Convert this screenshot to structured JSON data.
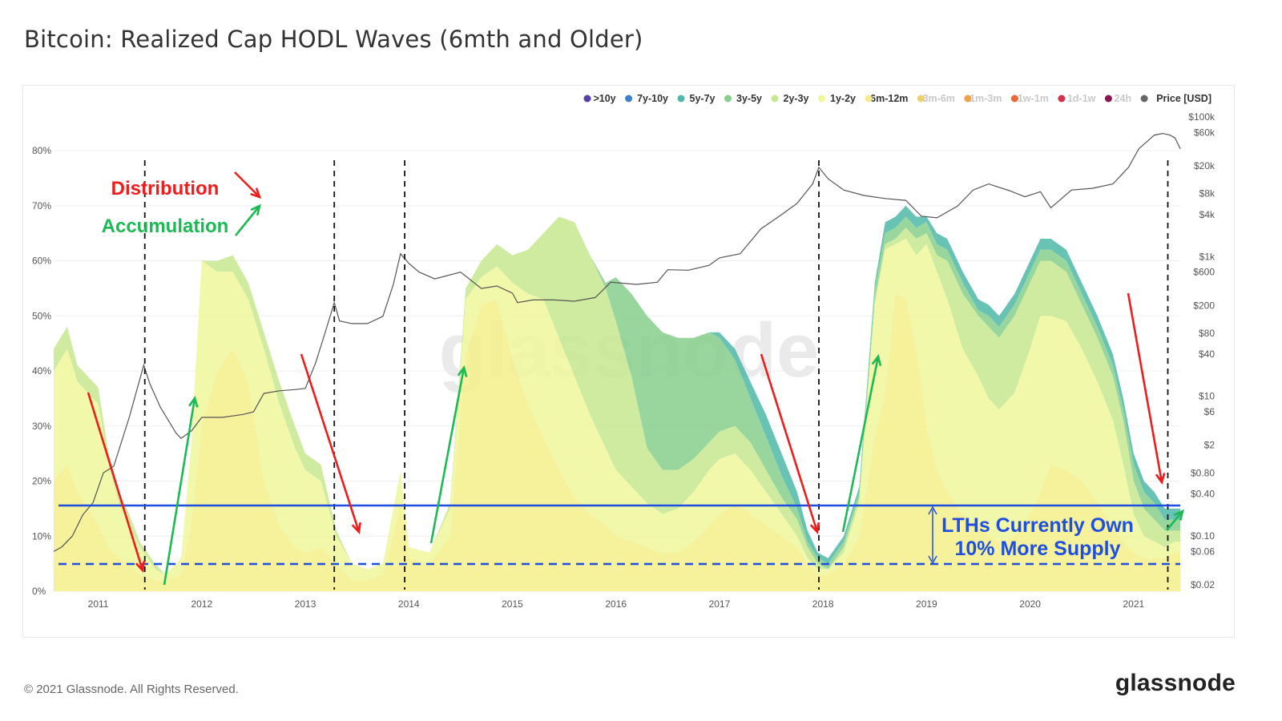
{
  "title": "Bitcoin: Realized Cap HODL Waves (6mth and Older)",
  "footer": {
    "copyright": "© 2021 Glassnode. All Rights Reserved.",
    "logo": "glassnode"
  },
  "watermark": "glassnode",
  "legend": [
    {
      "label": ">10y",
      "color": "#5b3fa8",
      "active": true
    },
    {
      "label": "7y-10y",
      "color": "#3f7fd0",
      "active": true
    },
    {
      "label": "5y-7y",
      "color": "#4fb8a8",
      "active": true
    },
    {
      "label": "3y-5y",
      "color": "#86cf8c",
      "active": true
    },
    {
      "label": "2y-3y",
      "color": "#c6e88f",
      "active": true
    },
    {
      "label": "1y-2y",
      "color": "#eef79a",
      "active": true
    },
    {
      "label": "6m-12m",
      "color": "#f5ee8a",
      "active": true
    },
    {
      "label": "3m-6m",
      "color": "#f1cf6a",
      "active": false
    },
    {
      "label": "1m-3m",
      "color": "#f1a04a",
      "active": false
    },
    {
      "label": "1w-1m",
      "color": "#e8693a",
      "active": false
    },
    {
      "label": "1d-1w",
      "color": "#d2334a",
      "active": false
    },
    {
      "label": "24h",
      "color": "#8b1550",
      "active": false
    },
    {
      "label": "Price [USD]",
      "color": "#666666",
      "active": true
    }
  ],
  "annotations": {
    "distribution_label": "Distribution",
    "accumulation_label": "Accumulation",
    "lth_line1": "LTHs Currently Own",
    "lth_line2": "10% More Supply",
    "colors": {
      "distribution": "#ef1c1c",
      "accumulation": "#1db954",
      "lth": "#1f4fe0"
    }
  },
  "chart_data": {
    "type": "area",
    "stacked": true,
    "x_ticks": [
      "2011",
      "2012",
      "2013",
      "2014",
      "2015",
      "2016",
      "2017",
      "2018",
      "2019",
      "2020",
      "2021"
    ],
    "x_range": [
      2010.57,
      2021.45
    ],
    "y_left": {
      "ticks": [
        "0%",
        "10%",
        "20%",
        "30%",
        "40%",
        "50%",
        "60%",
        "70%",
        "80%"
      ],
      "range": [
        0,
        0.8
      ]
    },
    "y_right": {
      "scale": "log",
      "ticks": [
        "$0.02",
        "$0.06",
        "$0.10",
        "$0.40",
        "$0.80",
        "$2",
        "$6",
        "$10",
        "$40",
        "$80",
        "$200",
        "$600",
        "$1k",
        "$4k",
        "$8k",
        "$20k",
        "$60k",
        "$100k"
      ],
      "tick_values": [
        0.02,
        0.06,
        0.1,
        0.4,
        0.8,
        2,
        6,
        10,
        40,
        80,
        200,
        600,
        1000,
        4000,
        8000,
        20000,
        60000,
        100000
      ]
    },
    "x": [
      2010.57,
      2010.7,
      2010.8,
      2011.0,
      2011.1,
      2011.2,
      2011.3,
      2011.4,
      2011.55,
      2011.65,
      2011.8,
      2011.9,
      2012.0,
      2012.15,
      2012.3,
      2012.45,
      2012.6,
      2012.75,
      2012.9,
      2013.0,
      2013.15,
      2013.3,
      2013.45,
      2013.6,
      2013.75,
      2013.85,
      2013.92,
      2014.0,
      2014.2,
      2014.4,
      2014.55,
      2014.7,
      2014.85,
      2015.0,
      2015.15,
      2015.3,
      2015.45,
      2015.6,
      2015.75,
      2015.9,
      2016.0,
      2016.15,
      2016.3,
      2016.45,
      2016.6,
      2016.75,
      2016.9,
      2017.0,
      2017.15,
      2017.3,
      2017.45,
      2017.6,
      2017.75,
      2017.85,
      2017.95,
      2018.05,
      2018.2,
      2018.35,
      2018.5,
      2018.6,
      2018.7,
      2018.8,
      2018.9,
      2019.0,
      2019.1,
      2019.2,
      2019.35,
      2019.5,
      2019.6,
      2019.7,
      2019.85,
      2020.0,
      2020.1,
      2020.2,
      2020.35,
      2020.5,
      2020.65,
      2020.8,
      2020.9,
      2021.0,
      2021.1,
      2021.2,
      2021.3,
      2021.4,
      2021.45
    ],
    "series": [
      {
        "name": "6m-12m",
        "values": [
          0.2,
          0.23,
          0.18,
          0.12,
          0.08,
          0.06,
          0.05,
          0.03,
          0.02,
          0.02,
          0.03,
          0.12,
          0.3,
          0.4,
          0.44,
          0.38,
          0.2,
          0.12,
          0.08,
          0.07,
          0.08,
          0.05,
          0.02,
          0.02,
          0.03,
          0.1,
          0.16,
          0.06,
          0.05,
          0.1,
          0.43,
          0.52,
          0.53,
          0.42,
          0.34,
          0.28,
          0.22,
          0.17,
          0.14,
          0.12,
          0.1,
          0.09,
          0.08,
          0.07,
          0.07,
          0.09,
          0.12,
          0.14,
          0.16,
          0.14,
          0.12,
          0.1,
          0.08,
          0.05,
          0.03,
          0.03,
          0.05,
          0.1,
          0.28,
          0.36,
          0.54,
          0.53,
          0.44,
          0.3,
          0.22,
          0.18,
          0.14,
          0.12,
          0.1,
          0.09,
          0.1,
          0.14,
          0.18,
          0.23,
          0.22,
          0.2,
          0.16,
          0.12,
          0.09,
          0.07,
          0.06,
          0.06,
          0.06,
          0.07,
          0.07
        ]
      },
      {
        "name": "1y-2y",
        "values": [
          0.2,
          0.21,
          0.2,
          0.22,
          0.15,
          0.1,
          0.07,
          0.05,
          0.02,
          0.01,
          0.03,
          0.15,
          0.3,
          0.18,
          0.14,
          0.15,
          0.24,
          0.22,
          0.18,
          0.15,
          0.12,
          0.05,
          0.03,
          0.02,
          0.02,
          0.05,
          0.06,
          0.02,
          0.02,
          0.05,
          0.1,
          0.05,
          0.06,
          0.14,
          0.2,
          0.25,
          0.24,
          0.22,
          0.18,
          0.14,
          0.12,
          0.1,
          0.08,
          0.07,
          0.08,
          0.09,
          0.1,
          0.1,
          0.09,
          0.08,
          0.06,
          0.04,
          0.02,
          0.01,
          0.01,
          0.01,
          0.02,
          0.06,
          0.24,
          0.26,
          0.09,
          0.11,
          0.17,
          0.33,
          0.36,
          0.35,
          0.3,
          0.27,
          0.25,
          0.24,
          0.26,
          0.3,
          0.32,
          0.27,
          0.27,
          0.24,
          0.22,
          0.19,
          0.14,
          0.07,
          0.04,
          0.03,
          0.02,
          0.02,
          0.02
        ]
      },
      {
        "name": "2y-3y",
        "values": [
          0.04,
          0.04,
          0.03,
          0.03,
          0.02,
          0.02,
          0.02,
          0.01,
          0.01,
          0.0,
          0.0,
          0.0,
          0.0,
          0.02,
          0.03,
          0.03,
          0.03,
          0.04,
          0.04,
          0.03,
          0.03,
          0.01,
          0.0,
          0.0,
          0.0,
          0.0,
          0.0,
          0.0,
          0.0,
          0.01,
          0.02,
          0.03,
          0.04,
          0.05,
          0.08,
          0.12,
          0.22,
          0.28,
          0.29,
          0.29,
          0.27,
          0.2,
          0.1,
          0.08,
          0.07,
          0.06,
          0.05,
          0.05,
          0.05,
          0.05,
          0.04,
          0.03,
          0.03,
          0.02,
          0.01,
          0.0,
          0.01,
          0.01,
          0.01,
          0.01,
          0.01,
          0.02,
          0.03,
          0.02,
          0.03,
          0.07,
          0.1,
          0.11,
          0.13,
          0.13,
          0.14,
          0.12,
          0.1,
          0.1,
          0.09,
          0.08,
          0.08,
          0.08,
          0.08,
          0.06,
          0.05,
          0.04,
          0.03,
          0.02,
          0.02
        ]
      },
      {
        "name": "3y-5y",
        "values": [
          0,
          0,
          0,
          0,
          0,
          0,
          0,
          0,
          0,
          0,
          0,
          0,
          0,
          0,
          0,
          0,
          0,
          0,
          0,
          0,
          0,
          0,
          0,
          0,
          0,
          0,
          0,
          0,
          0,
          0,
          0,
          0,
          0,
          0,
          0,
          0,
          0,
          0,
          0,
          0.01,
          0.08,
          0.15,
          0.24,
          0.25,
          0.24,
          0.22,
          0.2,
          0.17,
          0.12,
          0.08,
          0.06,
          0.04,
          0.02,
          0.01,
          0.01,
          0.01,
          0.01,
          0.01,
          0.02,
          0.02,
          0.02,
          0.02,
          0.02,
          0.02,
          0.02,
          0.02,
          0.02,
          0.01,
          0.02,
          0.02,
          0.02,
          0.02,
          0.02,
          0.02,
          0.02,
          0.02,
          0.02,
          0.02,
          0.02,
          0.03,
          0.03,
          0.03,
          0.02,
          0.02,
          0.02
        ]
      },
      {
        "name": "5y-7y",
        "values": [
          0,
          0,
          0,
          0,
          0,
          0,
          0,
          0,
          0,
          0,
          0,
          0,
          0,
          0,
          0,
          0,
          0,
          0,
          0,
          0,
          0,
          0,
          0,
          0,
          0,
          0,
          0,
          0,
          0,
          0,
          0,
          0,
          0,
          0,
          0,
          0,
          0,
          0,
          0,
          0,
          0,
          0,
          0,
          0,
          0,
          0,
          0,
          0.01,
          0.02,
          0.03,
          0.04,
          0.04,
          0.03,
          0.02,
          0.01,
          0.01,
          0.01,
          0.01,
          0.01,
          0.02,
          0.02,
          0.02,
          0.02,
          0.01,
          0.02,
          0.02,
          0.02,
          0.02,
          0.02,
          0.02,
          0.02,
          0.02,
          0.02,
          0.02,
          0.02,
          0.02,
          0.02,
          0.02,
          0.02,
          0.02,
          0.02,
          0.02,
          0.02,
          0.02,
          0.02
        ]
      },
      {
        "name": "Price [USD]",
        "axis": "right",
        "x": [
          2010.57,
          2010.65,
          2010.75,
          2010.85,
          2010.95,
          2011.05,
          2011.15,
          2011.3,
          2011.44,
          2011.5,
          2011.6,
          2011.75,
          2011.8,
          2011.9,
          2012.0,
          2012.2,
          2012.4,
          2012.5,
          2012.6,
          2012.75,
          2012.9,
          2013.0,
          2013.1,
          2013.2,
          2013.28,
          2013.33,
          2013.45,
          2013.6,
          2013.75,
          2013.85,
          2013.92,
          2014.0,
          2014.1,
          2014.25,
          2014.5,
          2014.7,
          2014.85,
          2015.0,
          2015.05,
          2015.2,
          2015.4,
          2015.6,
          2015.8,
          2015.95,
          2016.2,
          2016.4,
          2016.5,
          2016.7,
          2016.9,
          2017.0,
          2017.2,
          2017.4,
          2017.6,
          2017.75,
          2017.9,
          2017.96,
          2018.05,
          2018.2,
          2018.4,
          2018.6,
          2018.8,
          2018.95,
          2019.1,
          2019.3,
          2019.45,
          2019.6,
          2019.8,
          2019.95,
          2020.1,
          2020.2,
          2020.4,
          2020.6,
          2020.8,
          2020.95,
          2021.05,
          2021.2,
          2021.28,
          2021.35,
          2021.4,
          2021.45
        ],
        "values": [
          0.06,
          0.07,
          0.1,
          0.2,
          0.3,
          0.8,
          1,
          5,
          28,
          15,
          7,
          3,
          2.5,
          3.2,
          5,
          5,
          5.5,
          6,
          11,
          12,
          12.5,
          13,
          30,
          90,
          220,
          120,
          110,
          110,
          140,
          400,
          1100,
          800,
          600,
          480,
          600,
          350,
          380,
          300,
          220,
          240,
          240,
          230,
          260,
          430,
          400,
          430,
          650,
          640,
          750,
          960,
          1100,
          2500,
          4000,
          5800,
          11000,
          19000,
          13000,
          9000,
          7500,
          6800,
          6400,
          3800,
          3600,
          5300,
          9000,
          11000,
          8800,
          7200,
          8500,
          5000,
          9000,
          9500,
          11000,
          19000,
          35000,
          55000,
          58000,
          55000,
          50000,
          35000
        ]
      }
    ]
  }
}
